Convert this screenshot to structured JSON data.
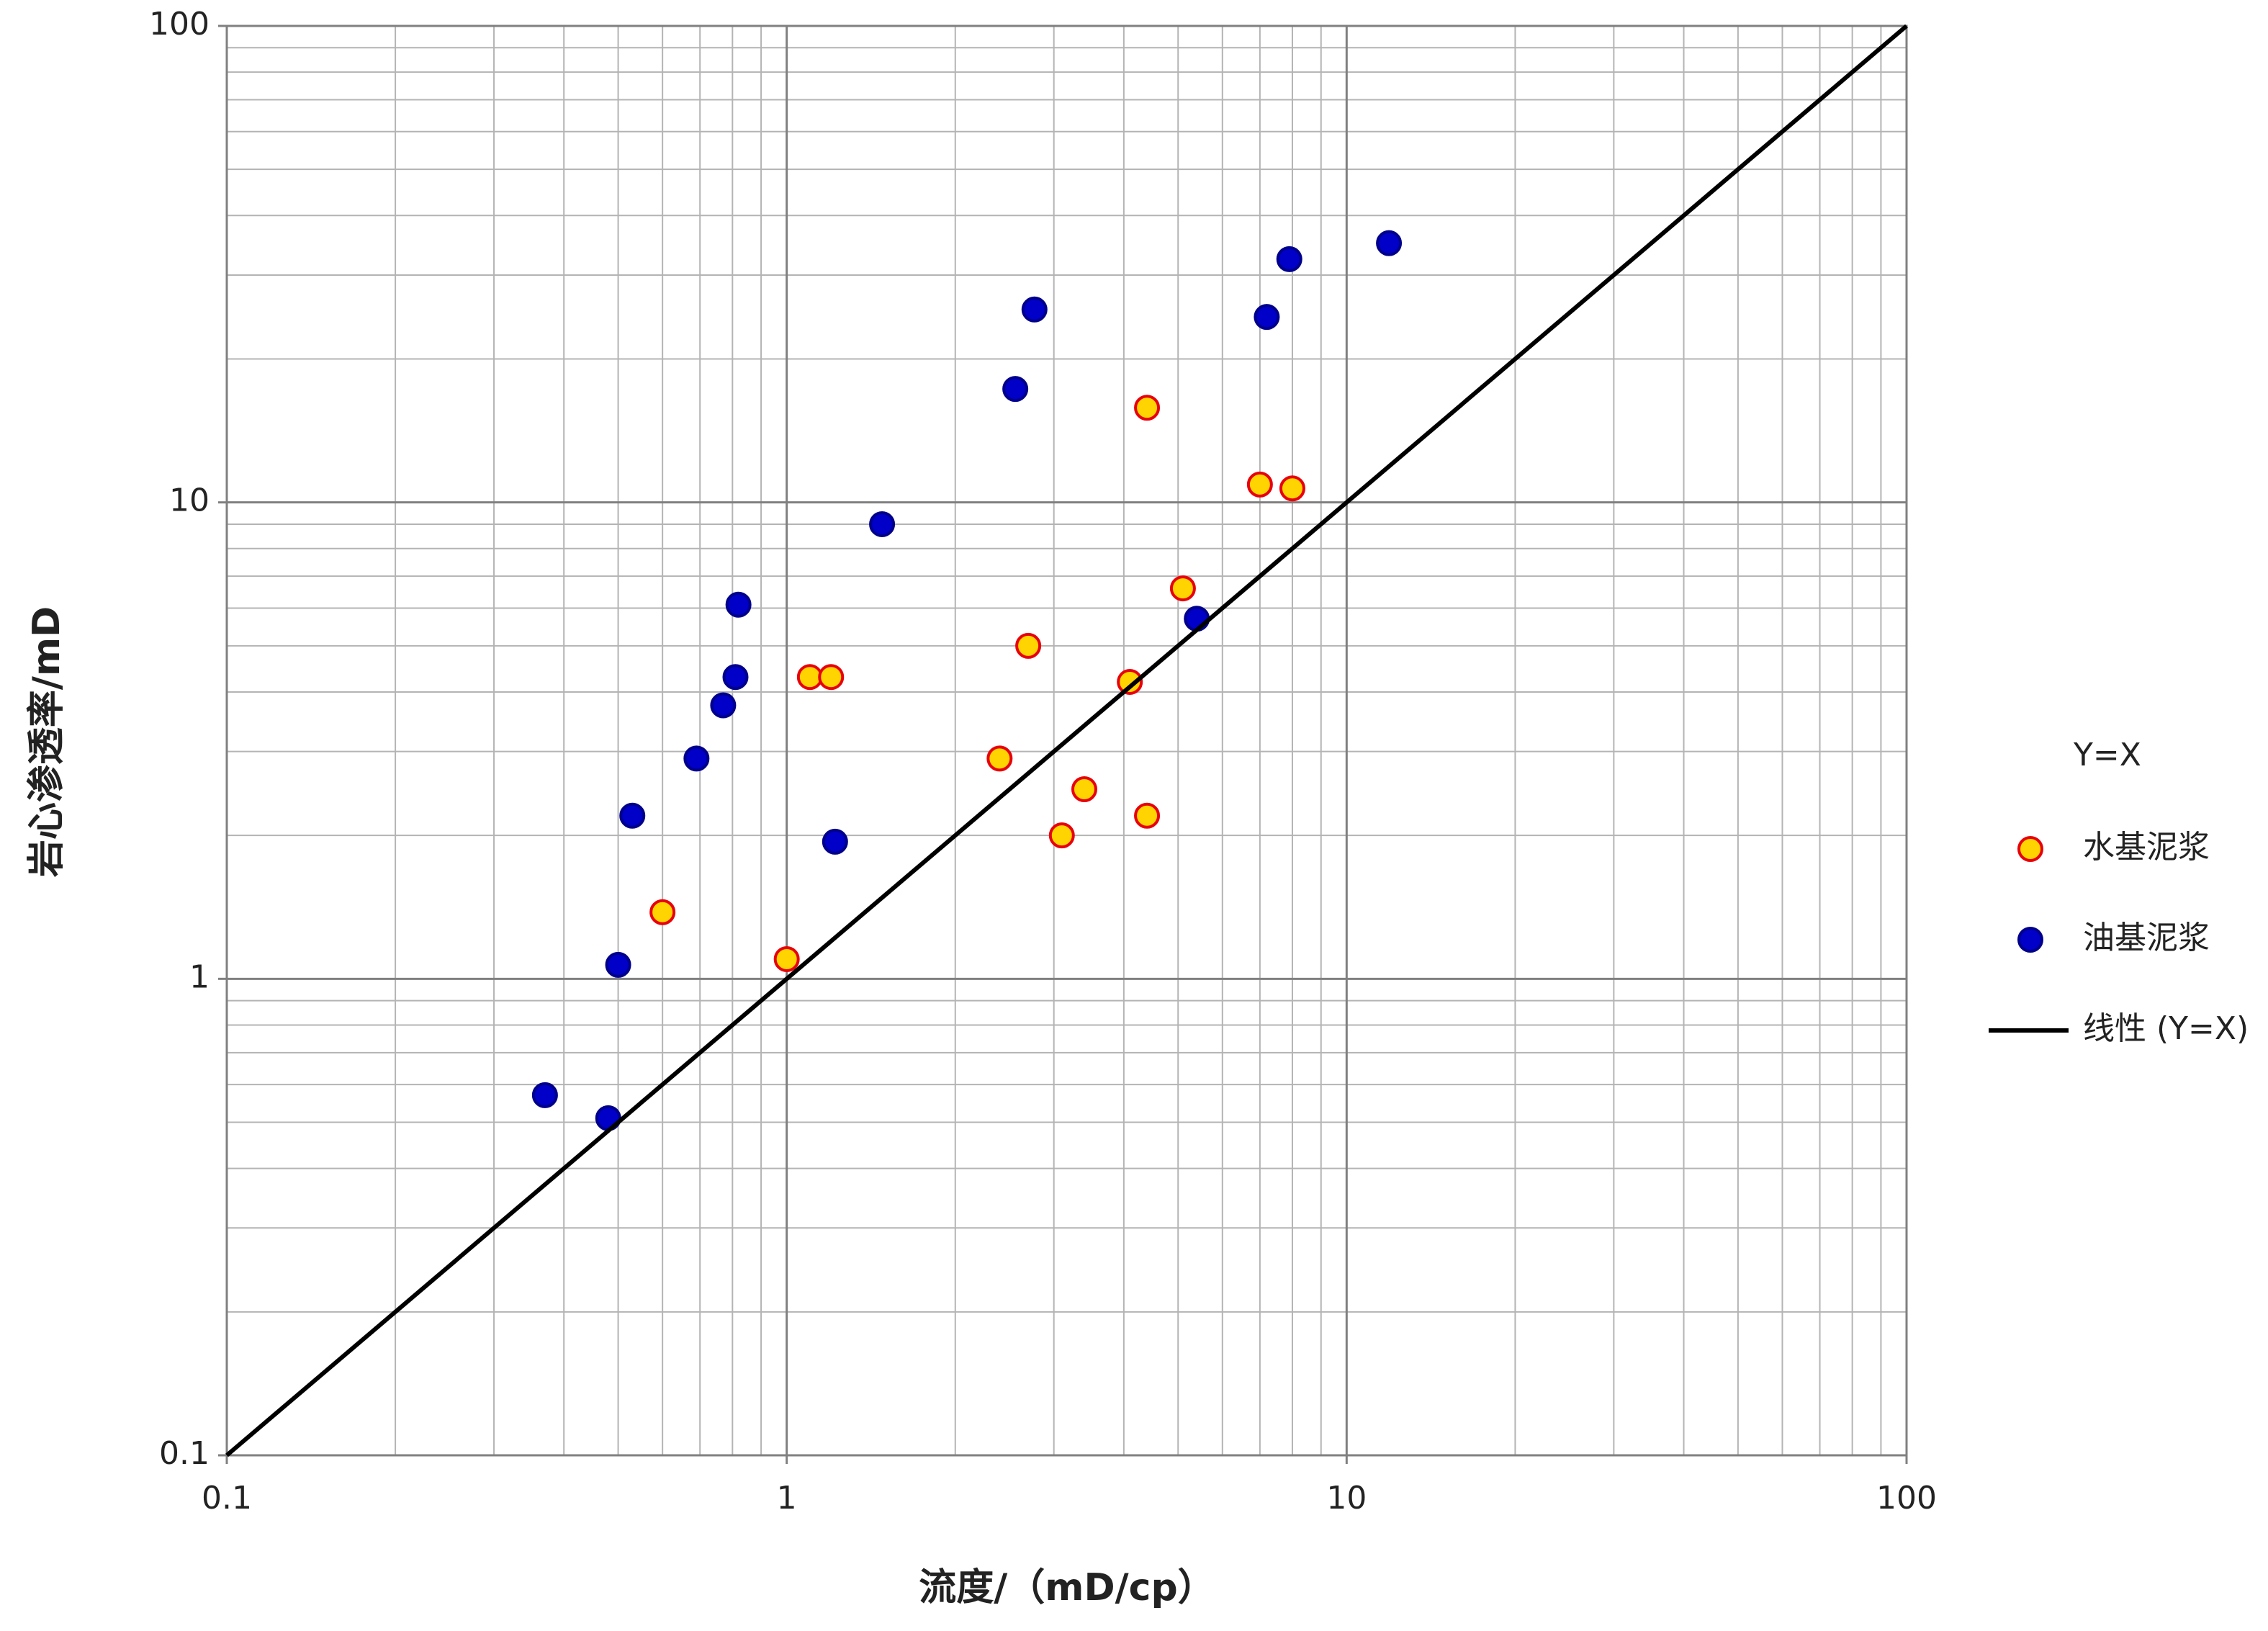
{
  "chart_data": {
    "type": "scatter",
    "x_label": "流度/（mD/cp）",
    "y_label": "岩心渗透率/mD",
    "xlim": [
      0.1,
      100
    ],
    "ylim": [
      0.1,
      100
    ],
    "xticks": [
      0.1,
      1,
      10,
      100
    ],
    "yticks": [
      0.1,
      1,
      10,
      100
    ],
    "xminorticks": [
      0.2,
      0.3,
      0.4,
      0.5,
      0.6,
      0.7,
      0.8,
      0.9,
      2,
      3,
      4,
      5,
      6,
      7,
      8,
      9,
      20,
      30,
      40,
      50,
      60,
      70,
      80,
      90
    ],
    "yminorticks": [
      0.2,
      0.3,
      0.4,
      0.5,
      0.6,
      0.7,
      0.8,
      0.9,
      2,
      3,
      4,
      5,
      6,
      7,
      8,
      9,
      20,
      30,
      40,
      50,
      60,
      70,
      80,
      90
    ],
    "log_x": true,
    "log_y": true,
    "grid": true,
    "legend_title": "Y=X",
    "legend_position": "right",
    "series": [
      {
        "name": "水基泥浆",
        "kind": "points",
        "color": "#ffd400",
        "edge_color": "#e8000b",
        "x": [
          0.6,
          1.0,
          1.1,
          1.2,
          2.4,
          2.7,
          3.1,
          3.4,
          4.1,
          4.4,
          4.4,
          5.1,
          7.0,
          8.0
        ],
        "values": [
          1.38,
          1.1,
          4.3,
          4.3,
          2.9,
          5.0,
          2.0,
          2.5,
          4.2,
          2.2,
          15.8,
          6.6,
          10.9,
          10.7
        ]
      },
      {
        "name": "油基泥浆",
        "kind": "points",
        "color": "#0000c8",
        "edge_color": "#00008a",
        "x": [
          0.37,
          0.48,
          0.5,
          0.53,
          0.69,
          0.77,
          0.81,
          0.82,
          1.22,
          1.48,
          2.56,
          2.77,
          5.4,
          7.2,
          7.9,
          11.9
        ],
        "values": [
          0.57,
          0.51,
          1.07,
          2.2,
          2.9,
          3.75,
          4.3,
          6.1,
          1.94,
          9.0,
          17.3,
          25.4,
          5.7,
          24.5,
          32.4,
          35.0
        ]
      },
      {
        "name": "线性 (Y=X)",
        "kind": "line",
        "color": "#000000",
        "x": [
          0.1,
          100
        ],
        "values": [
          0.1,
          100
        ]
      }
    ]
  }
}
